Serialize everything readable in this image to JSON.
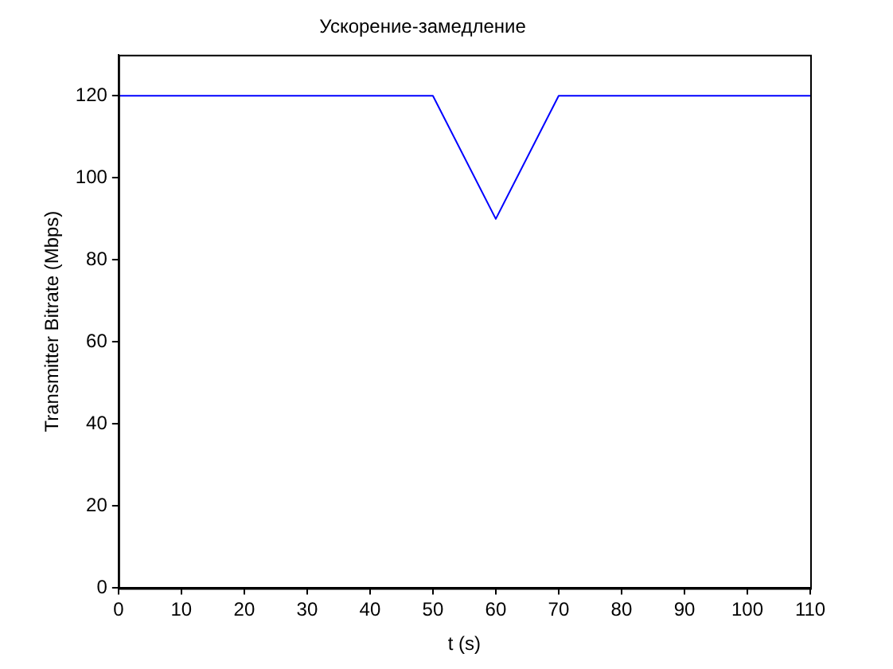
{
  "chart_data": {
    "type": "line",
    "title": "Ускорение-замедление",
    "xlabel": "t (s)",
    "ylabel": "Transmitter Bitrate (Mbps)",
    "x": [
      0,
      50,
      60,
      70,
      110
    ],
    "series": [
      {
        "color": "#0000ff",
        "values": [
          120,
          120,
          90,
          120,
          120
        ]
      }
    ],
    "xlim": [
      0,
      110
    ],
    "xticks": [
      0,
      10,
      20,
      30,
      40,
      50,
      60,
      70,
      80,
      90,
      100,
      110
    ],
    "ylim": [
      0,
      130
    ],
    "yticks": [
      0,
      20,
      40,
      60,
      80,
      100,
      120
    ],
    "grid": false,
    "legend": false,
    "marker": "none",
    "line_style": "solid"
  }
}
